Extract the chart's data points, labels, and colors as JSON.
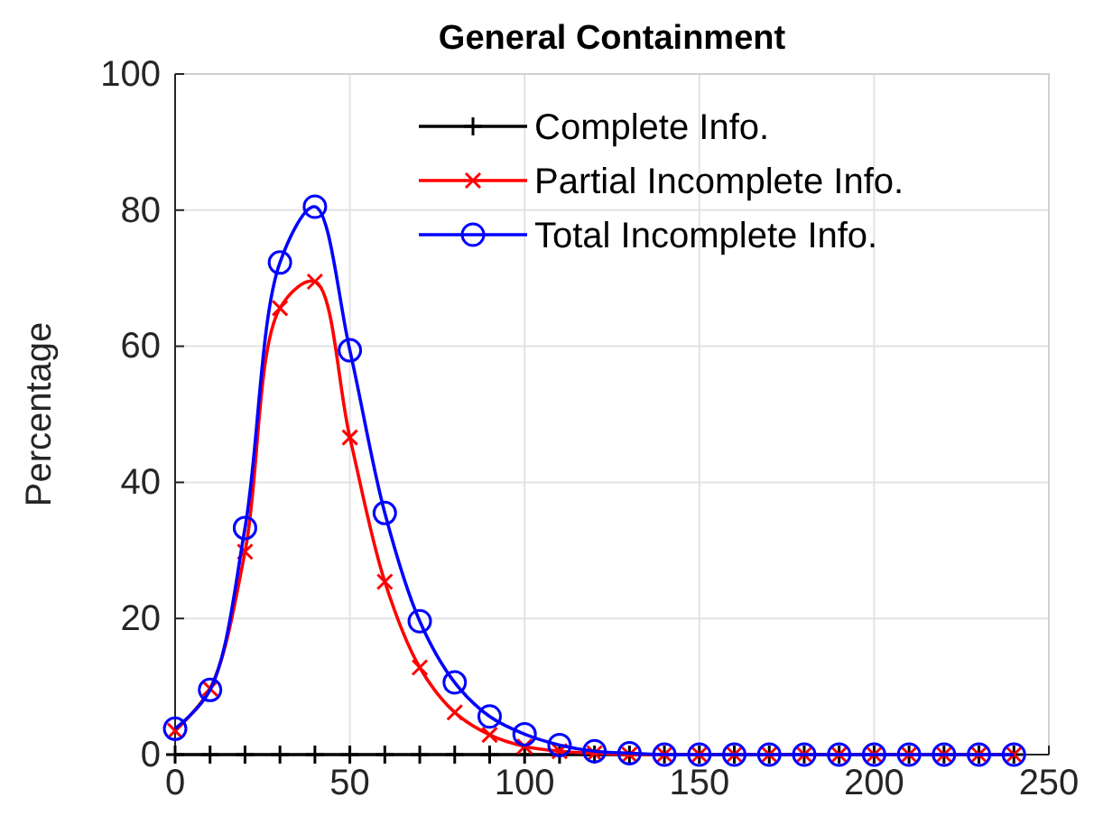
{
  "chart_data": {
    "type": "line",
    "title": "General Containment",
    "ylabel": "Percentage",
    "x": [
      0,
      10,
      20,
      30,
      40,
      50,
      60,
      70,
      80,
      90,
      100,
      110,
      120,
      130,
      140,
      150,
      160,
      170,
      180,
      190,
      200,
      210,
      220,
      230,
      240
    ],
    "series": [
      {
        "name": "Complete Info.",
        "color": "#000000",
        "marker": "cross",
        "values": [
          0,
          0,
          0,
          0,
          0,
          0,
          0,
          0,
          0,
          0,
          0,
          0,
          0,
          0,
          0,
          0,
          0,
          0,
          0,
          0,
          0,
          0,
          0,
          0,
          0
        ]
      },
      {
        "name": "Partial Incomplete Info.",
        "color": "#ff0000",
        "marker": "x",
        "values": [
          3.5,
          9.7,
          29.8,
          65.6,
          69.5,
          46.6,
          25.4,
          12.8,
          6.2,
          2.9,
          1.2,
          0.5,
          0.2,
          0,
          0,
          0,
          0,
          0,
          0,
          0,
          0,
          0,
          0,
          0,
          0
        ]
      },
      {
        "name": "Total Incomplete Info.",
        "color": "#0000ff",
        "marker": "circle",
        "values": [
          3.8,
          9.5,
          33.3,
          72.3,
          80.5,
          59.4,
          35.5,
          19.6,
          10.6,
          5.6,
          3.0,
          1.4,
          0.5,
          0.2,
          0,
          0,
          0,
          0,
          0,
          0,
          0,
          0,
          0,
          0,
          0
        ]
      }
    ],
    "xlim": [
      0,
      250
    ],
    "xticks": [
      0,
      50,
      100,
      150,
      200,
      250
    ],
    "ylim": [
      0,
      100
    ],
    "yticks": [
      0,
      20,
      40,
      60,
      80,
      100
    ],
    "grid": true,
    "legend": "top right",
    "line_style": "solid"
  }
}
